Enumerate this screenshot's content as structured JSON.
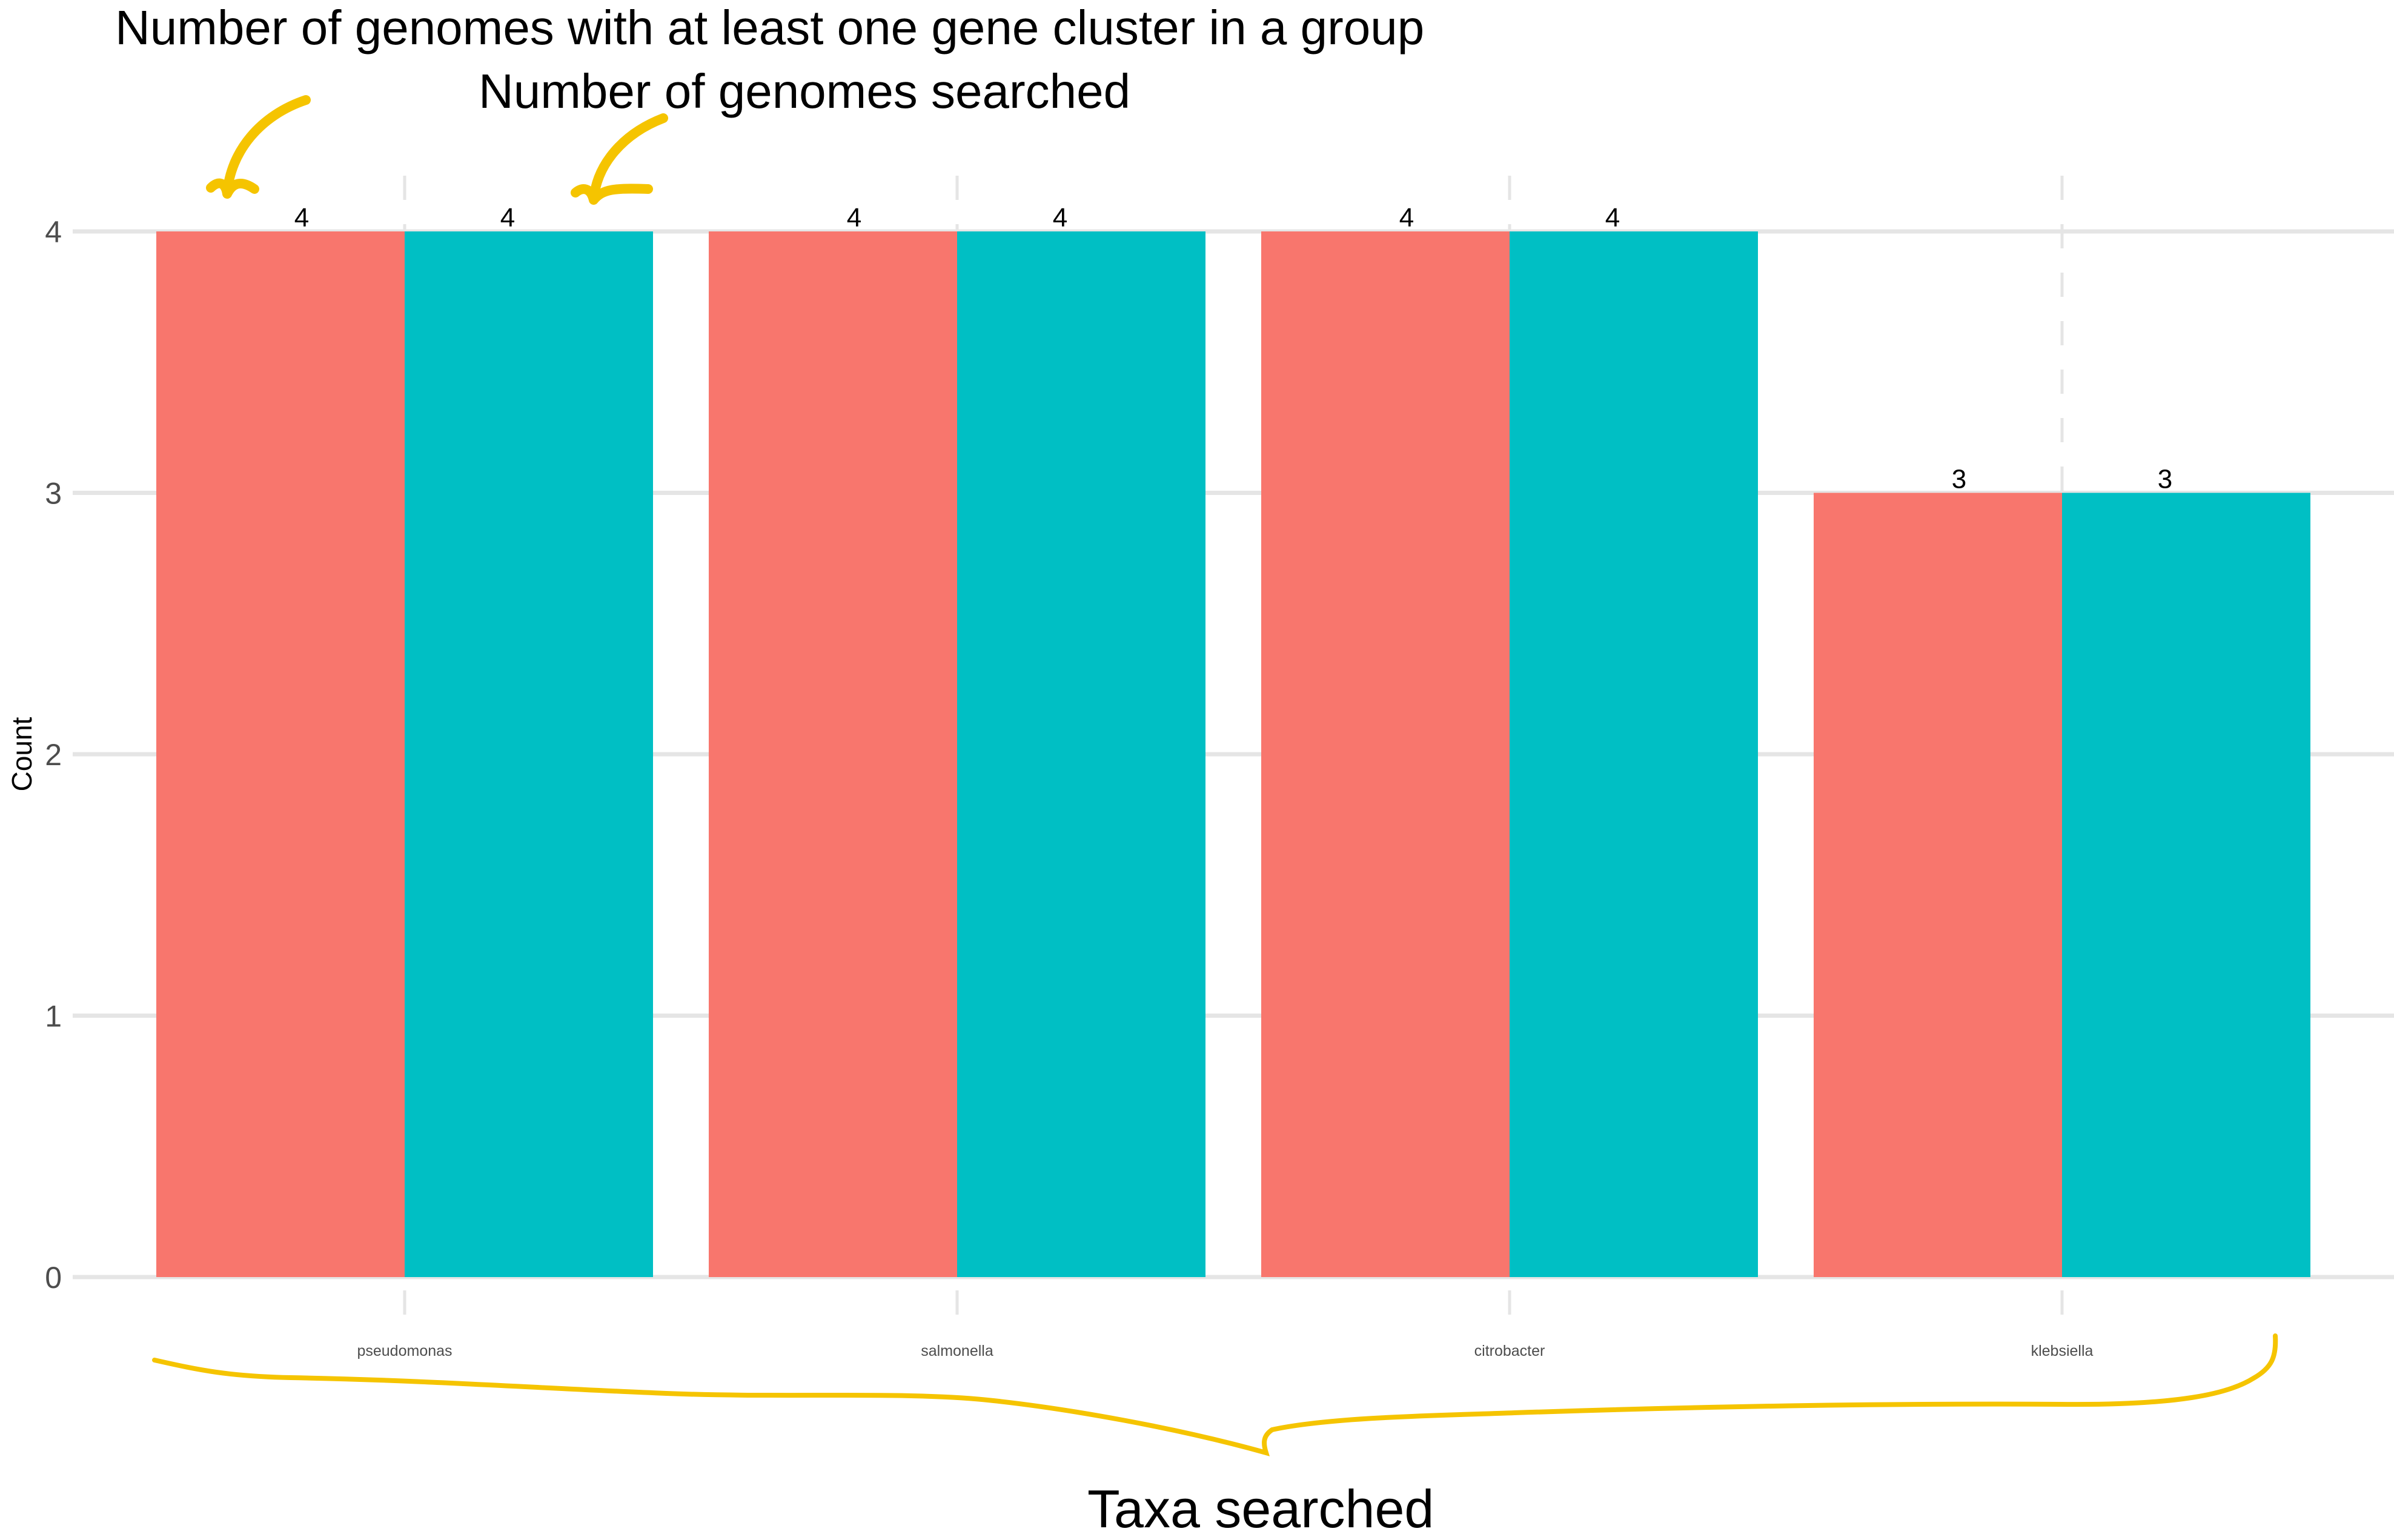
{
  "annotations": {
    "series_a_note": "Number of genomes with at least one gene cluster in a group",
    "series_b_note": "Number of genomes searched",
    "x_axis_note": "Taxa searched"
  },
  "colors": {
    "series_a": "#F8766D",
    "series_b": "#00BFC4",
    "annotation": "#F5C400",
    "grid": "#E5E5E5"
  },
  "chart_data": {
    "type": "bar",
    "categories": [
      "pseudomonas",
      "salmonella",
      "citrobacter",
      "klebsiella"
    ],
    "series": [
      {
        "values": [
          4,
          4,
          4,
          3
        ]
      },
      {
        "values": [
          4,
          4,
          4,
          3
        ]
      }
    ],
    "ylabel": "Count",
    "xlabel": "",
    "ylim": [
      0,
      4
    ],
    "yticks": [
      0,
      1,
      2,
      3,
      4
    ],
    "grid": true,
    "data_labels": true,
    "legend": "none"
  }
}
